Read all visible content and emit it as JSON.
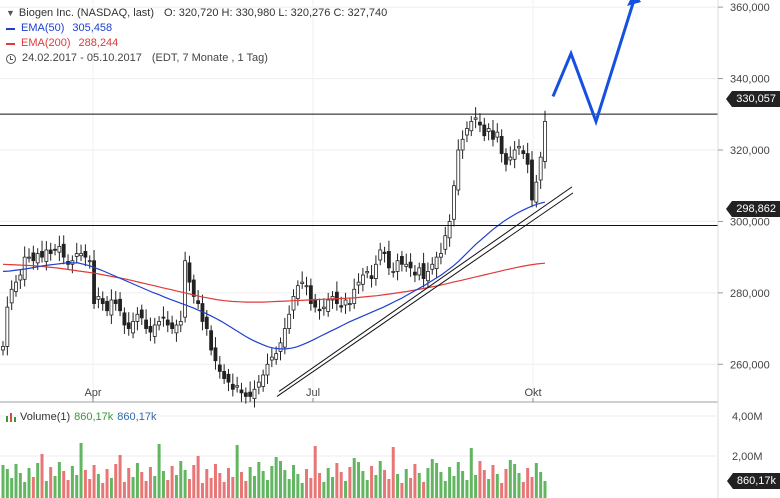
{
  "header": {
    "instrument": "Biogen Inc. (NASDAQ, last)",
    "ohlc": "O: 320,720  H: 330,980  L: 320,276  C: 327,740",
    "ema50_label": "EMA(50)",
    "ema50_value": "305,458",
    "ema200_label": "EMA(200)",
    "ema200_value": "288,244",
    "range": "24.02.2017 - 05.10.2017",
    "range_note": "(EDT, 7 Monate , 1 Tag)"
  },
  "volume_legend": {
    "label": "Volume(1)",
    "value1": "860,17k",
    "value2": "860,17k"
  },
  "price_tags": {
    "resistance": "330,057",
    "support": "298,862",
    "volume": "860,17k"
  },
  "colors": {
    "ema50": "#1f3fd0",
    "ema200": "#e03a3a",
    "up": "#2e9e2e",
    "down": "#e04848",
    "arrow": "#1550e0",
    "line": "#111111"
  },
  "chart_data": {
    "type": "candlestick",
    "x_labels": [
      "Apr",
      "Jul",
      "Okt"
    ],
    "y_ticks": [
      "360,000",
      "340,000",
      "320,000",
      "300,000",
      "280,000",
      "260,000"
    ],
    "ylim": [
      250,
      362
    ],
    "volume_ticks": [
      "4,00M",
      "2,00M"
    ],
    "horizontal_levels": [
      {
        "value": 330.057,
        "label": "330,057"
      },
      {
        "value": 298.862,
        "label": "298,862"
      }
    ],
    "trendline_points": [
      [
        "Jun 20",
        251
      ],
      [
        "Okt 12",
        308
      ]
    ],
    "projection_arrow": [
      [
        "Okt 13",
        335
      ],
      [
        "Okt 25",
        347
      ],
      [
        "Nov 8",
        328
      ],
      [
        "Dec 10",
        362
      ]
    ],
    "closes": [
      265,
      276,
      281,
      283,
      285,
      290,
      290,
      289,
      291,
      290,
      292,
      291,
      292,
      293,
      290,
      288,
      289,
      291,
      291,
      290,
      289,
      277,
      279,
      277,
      275,
      278,
      277,
      275,
      271,
      270,
      272,
      274,
      273,
      270,
      269,
      271,
      272,
      273,
      271,
      270,
      271,
      272,
      289,
      283,
      279,
      277,
      272,
      270,
      264,
      261,
      258,
      256,
      255,
      253,
      254,
      252,
      251,
      251,
      253,
      255,
      257,
      260,
      262,
      263,
      266,
      270,
      274,
      279,
      282,
      283,
      282,
      277,
      276,
      275,
      276,
      278,
      279,
      277,
      276,
      278,
      277,
      281,
      283,
      285,
      286,
      284,
      288,
      292,
      291,
      287,
      286,
      289,
      288,
      288,
      287,
      285,
      287,
      284,
      286,
      288,
      290,
      291,
      296,
      300,
      310,
      320,
      323,
      326,
      328,
      329,
      327,
      324,
      326,
      323,
      325,
      319,
      316,
      318,
      320,
      321,
      319,
      316,
      306,
      311,
      318,
      328
    ],
    "ema50": [
      286.0,
      286.1,
      286.3,
      286.5,
      286.7,
      287.0,
      287.3,
      287.6,
      287.8,
      288.0,
      288.2,
      288.4,
      288.4,
      288.4,
      288.0,
      287.6,
      287.0,
      286.4,
      285.7,
      285.0,
      284.3,
      283.6,
      282.9,
      282.2,
      281.5,
      280.8,
      280.1,
      279.5,
      278.8,
      278.2,
      277.6,
      277.0,
      276.4,
      275.8,
      275.1,
      274.4,
      273.6,
      272.8,
      271.9,
      270.9,
      269.9,
      268.9,
      267.9,
      267.0,
      266.2,
      265.5,
      264.9,
      264.5,
      264.3,
      264.3,
      264.5,
      264.9,
      265.5,
      266.2,
      267.0,
      267.8,
      268.6,
      269.4,
      270.2,
      271.0,
      271.8,
      272.5,
      273.2,
      273.9,
      274.6,
      275.3,
      276.0,
      276.8,
      277.6,
      278.4,
      279.3,
      280.2,
      281.1,
      282.0,
      283.0,
      284.0,
      285.0,
      286.2,
      287.4,
      288.8,
      290.4,
      292.0,
      293.6,
      295.0,
      296.4,
      297.8,
      299.0,
      300.2,
      301.2,
      302.2,
      303.0,
      303.8,
      304.5,
      305.0,
      305.4
    ],
    "ema200": [
      288.0,
      287.9,
      287.8,
      287.7,
      287.6,
      287.4,
      287.2,
      287.0,
      286.7,
      286.4,
      286.1,
      285.8,
      285.5,
      285.1,
      284.7,
      284.3,
      283.9,
      283.4,
      282.9,
      282.4,
      281.9,
      281.4,
      280.9,
      280.4,
      279.9,
      279.4,
      278.9,
      278.5,
      278.1,
      277.8,
      277.6,
      277.5,
      277.4,
      277.4,
      277.4,
      277.5,
      277.6,
      277.7,
      277.8,
      277.9,
      278.0,
      278.1,
      278.2,
      278.3,
      278.4,
      278.5,
      278.6,
      278.8,
      279.0,
      279.2,
      279.5,
      279.8,
      280.1,
      280.4,
      280.8,
      281.2,
      281.6,
      282.0,
      282.5,
      283.0,
      283.5,
      284.0,
      284.5,
      285.0,
      285.5,
      286.0,
      286.5,
      287.0,
      287.4,
      287.8,
      288.1,
      288.3
    ]
  }
}
